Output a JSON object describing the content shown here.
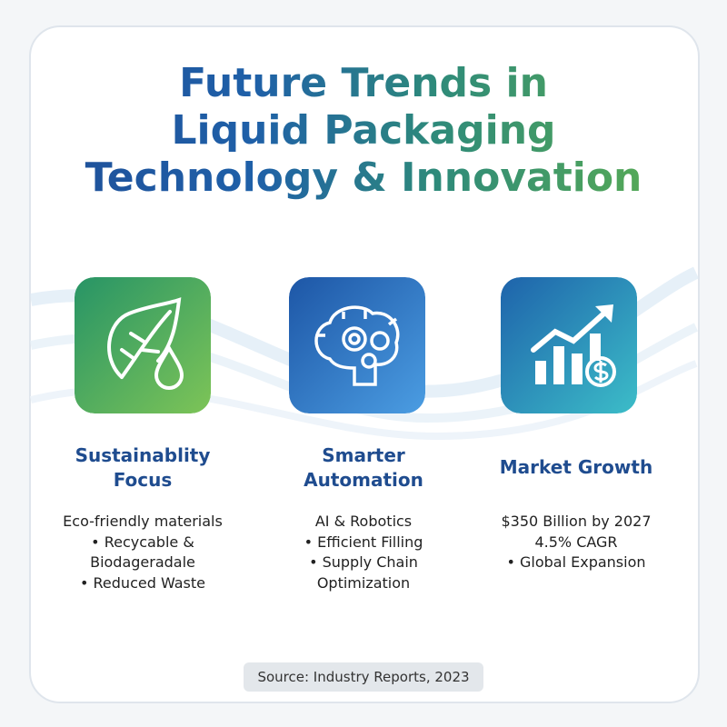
{
  "title": [
    "Future Trends in",
    "Liquid Packaging",
    "Technology & Innovation"
  ],
  "columns": [
    {
      "heading": [
        "Sustainablity",
        "Focus"
      ],
      "items": [
        "Eco-friendly materials",
        "• Recycable &",
        "Biodageradale",
        "• Reduced Waste"
      ]
    },
    {
      "heading": [
        "Smarter",
        "Automation"
      ],
      "items": [
        "AI & Robotics",
        "• Efficient Filling",
        "• Supply Chain",
        "Optimization"
      ]
    },
    {
      "heading": [
        "Market Growth"
      ],
      "items": [
        "$350 Billion by 2027",
        "4.5% CAGR",
        "• Global Expansion"
      ]
    }
  ],
  "source": "Source: Industry Reports, 2023"
}
